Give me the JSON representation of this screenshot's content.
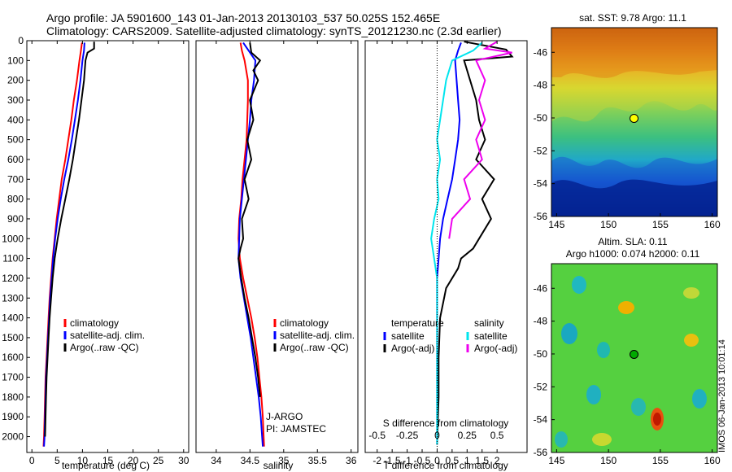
{
  "header": {
    "title_line1": "Argo profile: JA 5901600_143 01-Jan-2013 20130103_537 50.025S 152.465E",
    "title_line2": "Climatology: CARS2009. Satellite-adjusted climatology: synTS_20121230.nc (2.3d earlier)"
  },
  "colors": {
    "climatology": "#ff0000",
    "satellite_adj": "#0000ff",
    "argo": "#000000",
    "satellite_diff": "#00e5ee",
    "argo_sal_diff": "#ee00ee"
  },
  "chart_data": [
    {
      "type": "line",
      "name": "temperature-profile",
      "xlabel": "temperature (deg C)",
      "ylabel": "",
      "xlim": [
        -1,
        31
      ],
      "ylim": [
        2080,
        0
      ],
      "xticks": [
        "0",
        "5",
        "10",
        "15",
        "20",
        "25",
        "30"
      ],
      "yticks": [
        "0",
        "100",
        "200",
        "300",
        "400",
        "500",
        "600",
        "700",
        "800",
        "900",
        "1000",
        "1100",
        "1200",
        "1300",
        "1400",
        "1500",
        "1600",
        "1700",
        "1800",
        "1900",
        "2000"
      ],
      "legend": [
        "climatology",
        "satellite-adj. clim.",
        "Argo(..raw -QC)"
      ],
      "legend_position": "lower-center",
      "series": [
        {
          "name": "climatology",
          "color": "#ff0000",
          "x": [
            9.9,
            9.7,
            9.4,
            8.9,
            8.3,
            7.8,
            7.2,
            6.6,
            5.9,
            5.4,
            4.9,
            4.5,
            4.1,
            3.8,
            3.5,
            3.3,
            3.1,
            2.9,
            2.7,
            2.6,
            2.5,
            2.4,
            2.3
          ],
          "y": [
            10,
            50,
            100,
            200,
            300,
            400,
            500,
            600,
            700,
            800,
            900,
            1000,
            1100,
            1200,
            1300,
            1400,
            1500,
            1600,
            1700,
            1800,
            1900,
            2000,
            2050
          ]
        },
        {
          "name": "satellite-adj. clim.",
          "color": "#0000ff",
          "x": [
            10.4,
            10.3,
            10.0,
            9.6,
            9.1,
            8.5,
            7.9,
            7.2,
            6.4,
            5.7,
            5.1,
            4.6,
            4.2,
            3.9,
            3.6,
            3.4,
            3.2,
            3.0,
            2.8,
            2.7,
            2.6,
            2.5,
            2.4
          ],
          "y": [
            10,
            50,
            100,
            200,
            300,
            400,
            500,
            600,
            700,
            800,
            900,
            1000,
            1100,
            1200,
            1300,
            1400,
            1500,
            1600,
            1700,
            1800,
            1900,
            2000,
            2050
          ]
        },
        {
          "name": "Argo(..raw -QC)",
          "color": "#000000",
          "x": [
            12.3,
            12.3,
            11.0,
            10.6,
            10.3,
            9.8,
            9.3,
            8.7,
            8.1,
            7.4,
            6.6,
            5.8,
            5.1,
            4.5,
            4.1,
            3.8,
            3.5,
            3.3,
            3.1,
            2.9,
            2.8,
            2.7,
            2.6
          ],
          "y": [
            5,
            40,
            60,
            100,
            200,
            300,
            400,
            500,
            600,
            700,
            800,
            900,
            1000,
            1100,
            1200,
            1300,
            1400,
            1500,
            1600,
            1700,
            1800,
            1900,
            2000
          ]
        }
      ]
    },
    {
      "type": "line",
      "name": "salinity-profile",
      "xlabel": "salinity",
      "ylabel": "",
      "xlim": [
        33.7,
        36.1
      ],
      "ylim": [
        2080,
        0
      ],
      "xticks": [
        "34",
        "34.5",
        "35",
        "35.5",
        "36"
      ],
      "legend": [
        "climatology",
        "satellite-adj. clim.",
        "Argo(..raw -QC)"
      ],
      "legend_position": "lower-right",
      "annotation_lines": [
        "J-ARGO",
        "PI: JAMSTEC"
      ],
      "series": [
        {
          "name": "climatology",
          "color": "#ff0000",
          "x": [
            34.36,
            34.38,
            34.42,
            34.47,
            34.47,
            34.46,
            34.45,
            34.42,
            34.39,
            34.37,
            34.34,
            34.33,
            34.35,
            34.4,
            34.46,
            34.52,
            34.57,
            34.61,
            34.64,
            34.67,
            34.69,
            34.71
          ],
          "y": [
            10,
            50,
            100,
            200,
            300,
            400,
            500,
            600,
            700,
            800,
            900,
            1000,
            1100,
            1200,
            1300,
            1400,
            1500,
            1600,
            1700,
            1800,
            1900,
            2050
          ]
        },
        {
          "name": "satellite-adj. clim.",
          "color": "#0000ff",
          "x": [
            34.4,
            34.48,
            34.58,
            34.56,
            34.52,
            34.5,
            34.47,
            34.44,
            34.41,
            34.38,
            34.35,
            34.34,
            34.33,
            34.36,
            34.41,
            34.46,
            34.51,
            34.55,
            34.59,
            34.63,
            34.66,
            34.69
          ],
          "y": [
            10,
            50,
            100,
            200,
            300,
            400,
            500,
            600,
            700,
            800,
            900,
            1000,
            1100,
            1200,
            1300,
            1400,
            1500,
            1600,
            1700,
            1800,
            1900,
            2050
          ]
        },
        {
          "name": "Argo(..raw -QC)",
          "color": "#000000",
          "x": [
            34.5,
            34.52,
            34.65,
            34.55,
            34.62,
            34.5,
            34.55,
            34.46,
            34.52,
            34.42,
            34.48,
            34.38,
            34.4,
            34.36,
            34.33,
            34.37,
            34.42,
            34.48,
            34.53,
            34.58,
            34.62,
            34.65
          ],
          "y": [
            10,
            60,
            100,
            150,
            200,
            300,
            400,
            500,
            600,
            700,
            800,
            900,
            1000,
            1050,
            1100,
            1200,
            1300,
            1400,
            1500,
            1600,
            1700,
            1800
          ]
        }
      ]
    },
    {
      "type": "line",
      "name": "difference-profile",
      "xlabel": "T difference from climatology",
      "xlabel_top": "S difference from climatology",
      "xlim": [
        -2.4,
        3.0
      ],
      "ylim": [
        2080,
        0
      ],
      "xticks": [
        "-2",
        "-1.5",
        "-1",
        "-0.5",
        "0",
        "0.5",
        "1",
        "1.5",
        "2",
        "2.5"
      ],
      "xticks_shown": [
        "-2",
        "-1.5",
        "-1",
        "-0.5",
        "0",
        "0.5",
        "1",
        "1.5",
        "2"
      ],
      "s_xticks": [
        "-0.5",
        "-0.25",
        "0",
        "0.25",
        "0.5"
      ],
      "legend_temperature_title": "temperature",
      "legend_salinity_title": "salinity",
      "legend_entries": [
        "satellite",
        "Argo(-adj)",
        "satellite",
        "Argo(-adj)"
      ],
      "series": [
        {
          "name": "temperature satellite",
          "color": "#0000ff",
          "x": [
            0.8,
            0.7,
            0.6,
            0.65,
            0.7,
            0.75,
            0.7,
            0.6,
            0.5,
            0.35,
            0.2,
            0.1,
            0.05,
            0.0,
            0.0,
            0.0,
            0.0,
            0.0,
            0.0,
            0.0
          ],
          "y": [
            10,
            50,
            100,
            200,
            300,
            400,
            500,
            600,
            700,
            800,
            900,
            1000,
            1100,
            1200,
            1300,
            1400,
            1500,
            1600,
            1800,
            2040
          ]
        },
        {
          "name": "temperature Argo(-adj)",
          "color": "#000000",
          "x": [
            0.9,
            2.3,
            2.5,
            0.9,
            1.1,
            1.3,
            1.4,
            1.6,
            1.3,
            1.9,
            1.5,
            1.8,
            1.4,
            1.2,
            0.8,
            0.7,
            0.3,
            0.1,
            0.05,
            0.05,
            0.0
          ],
          "y": [
            5,
            45,
            80,
            100,
            200,
            300,
            400,
            500,
            600,
            700,
            800,
            900,
            1000,
            1050,
            1100,
            1150,
            1250,
            1400,
            1600,
            1800,
            2040
          ]
        },
        {
          "name": "salinity satellite",
          "color": "#00e5ee",
          "x": [
            1.5,
            1.2,
            0.5,
            0.3,
            0.2,
            0.1,
            0.0,
            0.1,
            0.0,
            0.05,
            -0.1,
            -0.2,
            -0.1,
            0.0,
            0.0,
            0.0,
            0.0,
            0.0,
            0.0
          ],
          "y": [
            10,
            50,
            100,
            200,
            300,
            400,
            500,
            600,
            700,
            800,
            900,
            1000,
            1100,
            1200,
            1300,
            1400,
            1600,
            1800,
            2040
          ]
        },
        {
          "name": "salinity Argo(-adj)",
          "color": "#ee00ee",
          "x": [
            2.0,
            1.6,
            2.5,
            1.3,
            1.6,
            1.4,
            1.6,
            1.3,
            1.5,
            0.9,
            1.1,
            0.5,
            0.4
          ],
          "y": [
            5,
            40,
            60,
            100,
            200,
            300,
            400,
            500,
            600,
            700,
            800,
            900,
            1000
          ]
        }
      ]
    },
    {
      "type": "heatmap",
      "name": "sst-map",
      "title": "sat. SST: 9.78  Argo: 11.1",
      "xlim": [
        144.5,
        160.5
      ],
      "ylim": [
        -56,
        -44.5
      ],
      "xticks": [
        "145",
        "150",
        "155",
        "160"
      ],
      "yticks": [
        "-46",
        "-48",
        "-50",
        "-52",
        "-54",
        "-56"
      ],
      "marker": {
        "lon": 152.465,
        "lat": -50.025,
        "color": "#ffff00"
      }
    },
    {
      "type": "heatmap",
      "name": "sla-map",
      "title_line1": "Altim. SLA: 0.11",
      "title_line2": "Argo h1000: 0.074  h2000: 0.11",
      "xlim": [
        144.5,
        160.5
      ],
      "ylim": [
        -56,
        -44.5
      ],
      "xticks": [
        "145",
        "150",
        "155",
        "160"
      ],
      "yticks": [
        "-46",
        "-48",
        "-50",
        "-52",
        "-54",
        "-56"
      ],
      "marker": {
        "lon": 152.465,
        "lat": -50.025,
        "color": "#00aa00"
      }
    }
  ],
  "footer": {
    "imos_stamp": "IMOS 06-Jan-2013 10:01:14"
  }
}
